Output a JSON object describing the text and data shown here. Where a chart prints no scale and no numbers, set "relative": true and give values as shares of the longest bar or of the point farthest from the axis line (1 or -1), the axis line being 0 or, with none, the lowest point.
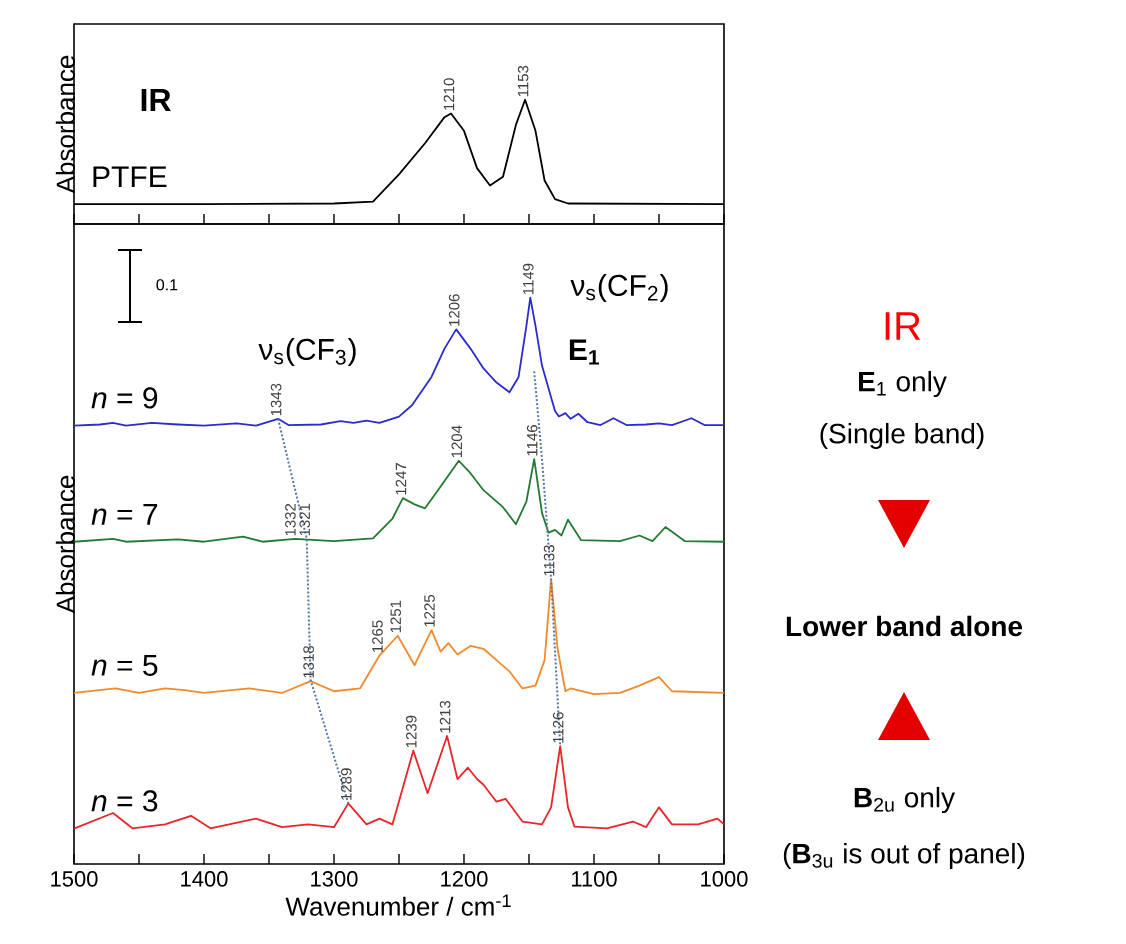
{
  "chart_data": [
    {
      "type": "line",
      "ylabel": "Absorbance",
      "relative": true,
      "tick_labels": false,
      "xlim": [
        1500,
        1000
      ],
      "xticks": [
        1500,
        {
          "value": 1450,
          "label": null
        },
        1400,
        {
          "value": 1350,
          "label": null
        },
        1300,
        {
          "value": 1250,
          "label": null
        },
        1200,
        {
          "value": 1150,
          "label": null
        },
        1100,
        {
          "value": 1050,
          "label": null
        },
        1000
      ],
      "annotations": [
        "IR",
        {
          "text": "1210",
          "x": 1210,
          "y": 0.89
        },
        {
          "text": "1153",
          "x": 1153,
          "y": 1.0
        }
      ],
      "series": [
        {
          "name": "PTFE",
          "color": "#000000",
          "x": [
            1500,
            1400,
            1300,
            1270,
            1250,
            1230,
            1215,
            1210,
            1200,
            1190,
            1180,
            1170,
            1160,
            1153,
            1145,
            1138,
            1130,
            1120,
            1000
          ],
          "values": [
            0.16,
            0.16,
            0.165,
            0.18,
            0.4,
            0.65,
            0.86,
            0.89,
            0.75,
            0.45,
            0.31,
            0.38,
            0.8,
            1.0,
            0.75,
            0.35,
            0.2,
            0.165,
            0.16
          ]
        }
      ]
    },
    {
      "type": "line",
      "ylabel": "Absorbance",
      "xlabel": "Wavenumber / cm$^{-1}$",
      "relative": true,
      "tick_labels": "x",
      "xlim": [
        1500,
        1000
      ],
      "xticks": [
        1500,
        {
          "value": 1450,
          "label": null
        },
        1400,
        {
          "value": 1350,
          "label": null
        },
        1300,
        {
          "value": 1250,
          "label": null
        },
        1200,
        {
          "value": 1150,
          "label": null
        },
        1100,
        {
          "value": 1050,
          "label": null
        },
        1000
      ],
      "annotations": [
        "0.1",
        "ν$_{s}$(CF$_{3}$)",
        "ν$_{s}$(CF$_{2}$)",
        "E$_{1}$",
        {
          "text": "1343",
          "x": 1343,
          "y": 0.786
        },
        {
          "text": "1206",
          "x": 1206,
          "y": 0.944
        },
        {
          "text": "1149",
          "x": 1149,
          "y": 1.0
        },
        {
          "text": "1146",
          "x": 1146,
          "y": 0.715
        },
        {
          "text": "1332",
          "x": 1332,
          "y": 0.574
        },
        {
          "text": "1321",
          "x": 1321,
          "y": 0.574
        },
        {
          "text": "1247",
          "x": 1247,
          "y": 0.646
        },
        {
          "text": "1204",
          "x": 1204,
          "y": 0.712
        },
        {
          "text": "1318",
          "x": 1318,
          "y": 0.323
        },
        {
          "text": "1265",
          "x": 1265,
          "y": 0.368
        },
        {
          "text": "1251",
          "x": 1251,
          "y": 0.403
        },
        {
          "text": "1225",
          "x": 1225,
          "y": 0.413
        },
        {
          "text": "1133",
          "x": 1133,
          "y": 0.503
        },
        {
          "text": "1289",
          "x": 1289,
          "y": 0.107
        },
        {
          "text": "1239",
          "x": 1239,
          "y": 0.2
        },
        {
          "text": "1213",
          "x": 1213,
          "y": 0.226
        },
        {
          "text": "1126",
          "x": 1126,
          "y": 0.208
        }
      ],
      "series": [
        {
          "name": "*n* = 9",
          "color": "#2b2bd0",
          "x": [
            1500,
            1480,
            1470,
            1460,
            1440,
            1420,
            1400,
            1375,
            1360,
            1343,
            1335,
            1310,
            1295,
            1285,
            1275,
            1265,
            1250,
            1240,
            1225,
            1215,
            1206,
            1195,
            1185,
            1175,
            1165,
            1158,
            1152,
            1149,
            1145,
            1140,
            1135,
            1130,
            1127,
            1122,
            1118,
            1112,
            1105,
            1095,
            1085,
            1075,
            1060,
            1050,
            1040,
            1025,
            1015,
            1000
          ],
          "values": [
            0.774,
            0.776,
            0.779,
            0.774,
            0.779,
            0.776,
            0.774,
            0.778,
            0.774,
            0.786,
            0.775,
            0.776,
            0.782,
            0.779,
            0.783,
            0.779,
            0.79,
            0.81,
            0.86,
            0.91,
            0.944,
            0.91,
            0.875,
            0.85,
            0.833,
            0.86,
            0.95,
            1.0,
            0.95,
            0.88,
            0.84,
            0.8,
            0.79,
            0.796,
            0.786,
            0.795,
            0.78,
            0.775,
            0.787,
            0.775,
            0.776,
            0.778,
            0.775,
            0.787,
            0.775,
            0.775
          ]
        },
        {
          "name": "*n* = 7",
          "color": "#237a32",
          "x": [
            1500,
            1470,
            1460,
            1420,
            1400,
            1370,
            1355,
            1330,
            1300,
            1270,
            1255,
            1247,
            1238,
            1230,
            1220,
            1204,
            1195,
            1185,
            1170,
            1160,
            1152,
            1146,
            1140,
            1135,
            1130,
            1125,
            1120,
            1110,
            1080,
            1065,
            1055,
            1045,
            1030,
            1000
          ],
          "values": [
            0.569,
            0.574,
            0.569,
            0.573,
            0.569,
            0.578,
            0.569,
            0.574,
            0.57,
            0.575,
            0.61,
            0.646,
            0.635,
            0.628,
            0.66,
            0.712,
            0.69,
            0.66,
            0.63,
            0.6,
            0.64,
            0.715,
            0.62,
            0.585,
            0.59,
            0.58,
            0.608,
            0.572,
            0.57,
            0.58,
            0.57,
            0.595,
            0.57,
            0.569
          ]
        },
        {
          "name": "*n* = 5",
          "color": "#f08a2a",
          "x": [
            1500,
            1468,
            1450,
            1430,
            1415,
            1400,
            1365,
            1340,
            1318,
            1300,
            1280,
            1265,
            1251,
            1238,
            1225,
            1218,
            1212,
            1205,
            1195,
            1185,
            1175,
            1165,
            1155,
            1145,
            1138,
            1133,
            1128,
            1122,
            1118,
            1100,
            1080,
            1065,
            1050,
            1040,
            1000
          ],
          "values": [
            0.302,
            0.31,
            0.302,
            0.31,
            0.307,
            0.302,
            0.31,
            0.302,
            0.323,
            0.305,
            0.31,
            0.368,
            0.403,
            0.351,
            0.413,
            0.375,
            0.39,
            0.37,
            0.385,
            0.38,
            0.36,
            0.34,
            0.31,
            0.315,
            0.36,
            0.503,
            0.38,
            0.305,
            0.31,
            0.3,
            0.302,
            0.315,
            0.33,
            0.305,
            0.302
          ]
        },
        {
          "name": "*n* = 3",
          "color": "#e8262a",
          "x": [
            1500,
            1470,
            1455,
            1430,
            1410,
            1395,
            1360,
            1340,
            1320,
            1300,
            1289,
            1275,
            1265,
            1255,
            1239,
            1228,
            1213,
            1205,
            1197,
            1190,
            1185,
            1175,
            1168,
            1155,
            1140,
            1133,
            1126,
            1120,
            1115,
            1090,
            1070,
            1060,
            1050,
            1040,
            1020,
            1005,
            1000
          ],
          "values": [
            0.0625,
            0.09,
            0.063,
            0.07,
            0.085,
            0.063,
            0.08,
            0.065,
            0.07,
            0.065,
            0.107,
            0.07,
            0.08,
            0.07,
            0.2,
            0.125,
            0.226,
            0.15,
            0.17,
            0.15,
            0.14,
            0.11,
            0.115,
            0.075,
            0.07,
            0.1,
            0.208,
            0.1,
            0.066,
            0.063,
            0.075,
            0.065,
            0.1,
            0.07,
            0.07,
            0.08,
            0.07
          ]
        },
        {
          "color": "#5577aa",
          "line_style": "dotted",
          "x": [
            1343,
            1321,
            1318,
            1289
          ],
          "values": [
            0.786,
            0.575,
            0.325,
            0.107
          ]
        },
        {
          "color": "#5577aa",
          "line_style": "dotted",
          "x": [
            1146,
            1140,
            1133,
            1126
          ],
          "values": [
            0.87,
            0.715,
            0.503,
            0.208
          ]
        }
      ]
    },
    {
      "type": "other",
      "annotations": [
        "IR",
        "**E**$_{1}$ only",
        "(Single band)",
        "Lower band alone",
        "**B**$_{2u}$ only",
        "(**B**$_{3u}$ is out of panel)"
      ]
    }
  ]
}
